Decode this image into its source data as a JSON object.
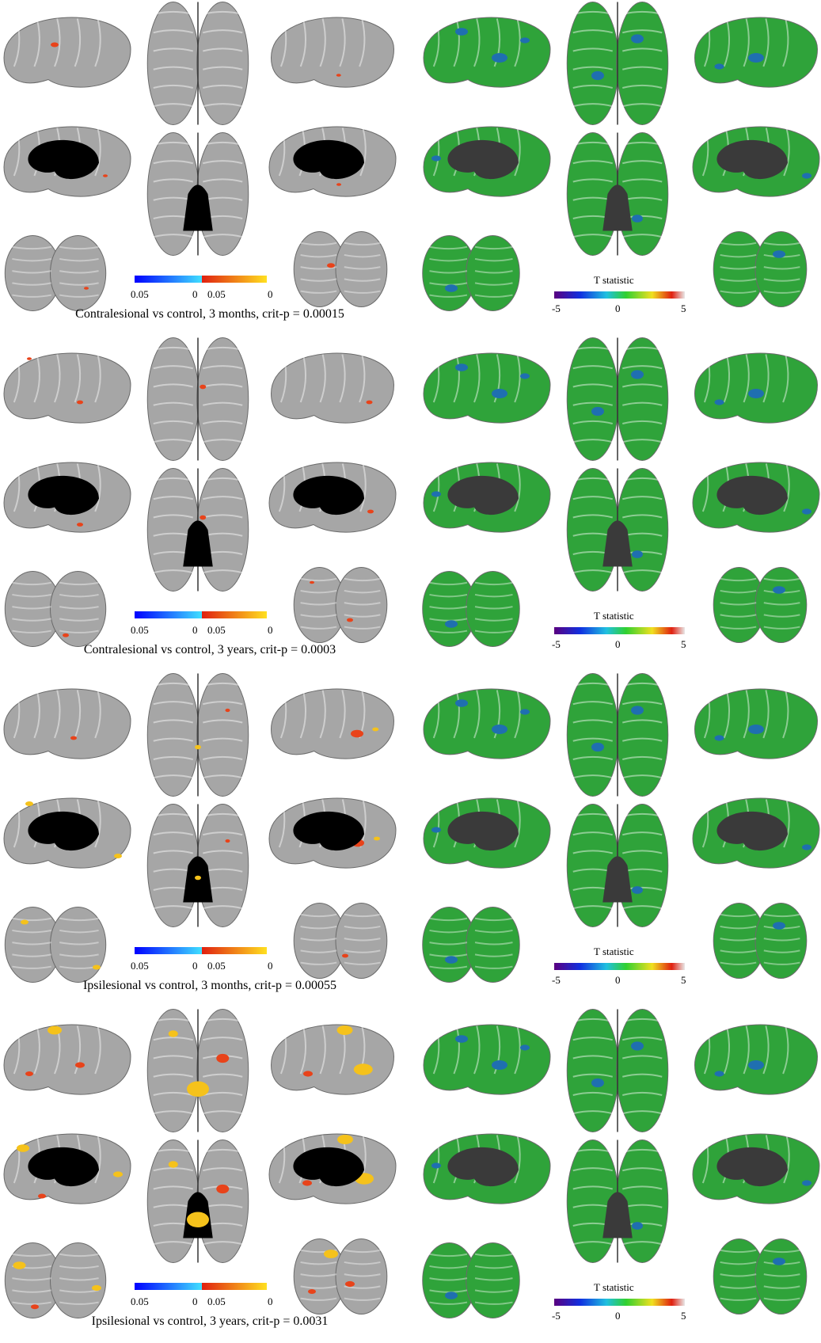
{
  "figure": {
    "panels": [
      {
        "caption": "Contralesional vs control, 3 months, crit-p = 0.00015"
      },
      {
        "caption": "Contralesional vs control, 3 years, crit-p = 0.0003"
      },
      {
        "caption": "Ipsilesional vs control, 3 months, crit-p = 0.00055"
      },
      {
        "caption": "Ipsilesional vs control, 3 years, crit-p = 0.0031"
      }
    ],
    "pvalue_colorbar": {
      "labels": [
        "0.05",
        "0",
        "0.05",
        "0"
      ]
    },
    "tstat_colorbar": {
      "title": "T statistic",
      "labels": [
        "-5",
        "0",
        "5"
      ]
    }
  },
  "colors": {
    "cortex_gray": "#a6a6a6",
    "cortex_green": "#2fa33a",
    "cortex_blue": "#1f6fb0",
    "hole": "#000000",
    "hole_dark": "#3a3a3a",
    "significant_red": "#e8431a",
    "significant_yellow": "#f5c21b"
  }
}
